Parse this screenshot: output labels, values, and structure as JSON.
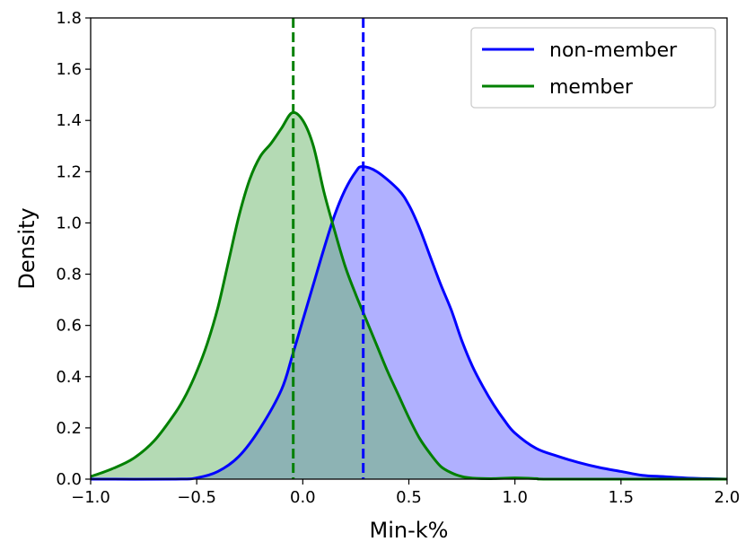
{
  "chart_data": {
    "type": "line",
    "title": "",
    "xlabel": "Min-k%",
    "ylabel": "Density",
    "xlim": [
      -1.0,
      2.0
    ],
    "ylim": [
      0.0,
      1.8
    ],
    "xticks": [
      "−1.0",
      "−0.5",
      "0.0",
      "0.5",
      "1.0",
      "1.5",
      "2.0"
    ],
    "xtick_values": [
      -1.0,
      -0.5,
      0.0,
      0.5,
      1.0,
      1.5,
      2.0
    ],
    "yticks": [
      "0.0",
      "0.2",
      "0.4",
      "0.6",
      "0.8",
      "1.0",
      "1.2",
      "1.4",
      "1.6",
      "1.8"
    ],
    "ytick_values": [
      0.0,
      0.2,
      0.4,
      0.6,
      0.8,
      1.0,
      1.2,
      1.4,
      1.6,
      1.8
    ],
    "grid": false,
    "legend_position": "top-right",
    "series": [
      {
        "name": "non-member",
        "line_color": "#0000ff",
        "fill_color": "#8080ff",
        "fill_opacity": 0.62,
        "mean_line": 0.285,
        "points": [
          [
            -1.0,
            0.0
          ],
          [
            -0.6,
            0.0
          ],
          [
            -0.5,
            0.005
          ],
          [
            -0.4,
            0.03
          ],
          [
            -0.3,
            0.09
          ],
          [
            -0.2,
            0.2
          ],
          [
            -0.1,
            0.35
          ],
          [
            -0.05,
            0.48
          ],
          [
            0.0,
            0.62
          ],
          [
            0.05,
            0.76
          ],
          [
            0.1,
            0.9
          ],
          [
            0.15,
            1.03
          ],
          [
            0.2,
            1.13
          ],
          [
            0.25,
            1.2
          ],
          [
            0.28,
            1.22
          ],
          [
            0.35,
            1.2
          ],
          [
            0.45,
            1.13
          ],
          [
            0.5,
            1.07
          ],
          [
            0.55,
            0.98
          ],
          [
            0.6,
            0.87
          ],
          [
            0.65,
            0.76
          ],
          [
            0.7,
            0.66
          ],
          [
            0.75,
            0.54
          ],
          [
            0.8,
            0.44
          ],
          [
            0.85,
            0.36
          ],
          [
            0.9,
            0.29
          ],
          [
            0.95,
            0.23
          ],
          [
            1.0,
            0.18
          ],
          [
            1.1,
            0.12
          ],
          [
            1.2,
            0.09
          ],
          [
            1.3,
            0.065
          ],
          [
            1.4,
            0.045
          ],
          [
            1.5,
            0.03
          ],
          [
            1.6,
            0.015
          ],
          [
            1.7,
            0.01
          ],
          [
            1.8,
            0.005
          ],
          [
            1.9,
            0.002
          ],
          [
            2.0,
            0.0
          ]
        ]
      },
      {
        "name": "member",
        "line_color": "#008000",
        "fill_color": "#69b669",
        "fill_opacity": 0.5,
        "mean_line": -0.045,
        "points": [
          [
            -1.0,
            0.01
          ],
          [
            -0.9,
            0.04
          ],
          [
            -0.8,
            0.08
          ],
          [
            -0.7,
            0.15
          ],
          [
            -0.6,
            0.26
          ],
          [
            -0.55,
            0.33
          ],
          [
            -0.5,
            0.42
          ],
          [
            -0.45,
            0.53
          ],
          [
            -0.4,
            0.67
          ],
          [
            -0.35,
            0.85
          ],
          [
            -0.3,
            1.03
          ],
          [
            -0.25,
            1.17
          ],
          [
            -0.2,
            1.26
          ],
          [
            -0.15,
            1.31
          ],
          [
            -0.1,
            1.37
          ],
          [
            -0.05,
            1.43
          ],
          [
            0.0,
            1.4
          ],
          [
            0.05,
            1.3
          ],
          [
            0.1,
            1.12
          ],
          [
            0.15,
            0.97
          ],
          [
            0.2,
            0.83
          ],
          [
            0.25,
            0.72
          ],
          [
            0.3,
            0.62
          ],
          [
            0.35,
            0.52
          ],
          [
            0.4,
            0.42
          ],
          [
            0.45,
            0.33
          ],
          [
            0.5,
            0.24
          ],
          [
            0.55,
            0.16
          ],
          [
            0.6,
            0.1
          ],
          [
            0.65,
            0.05
          ],
          [
            0.7,
            0.025
          ],
          [
            0.75,
            0.01
          ],
          [
            0.8,
            0.004
          ],
          [
            0.9,
            0.002
          ],
          [
            1.0,
            0.005
          ],
          [
            1.1,
            0.002
          ],
          [
            1.2,
            0.0
          ],
          [
            2.0,
            0.0
          ]
        ]
      }
    ]
  }
}
